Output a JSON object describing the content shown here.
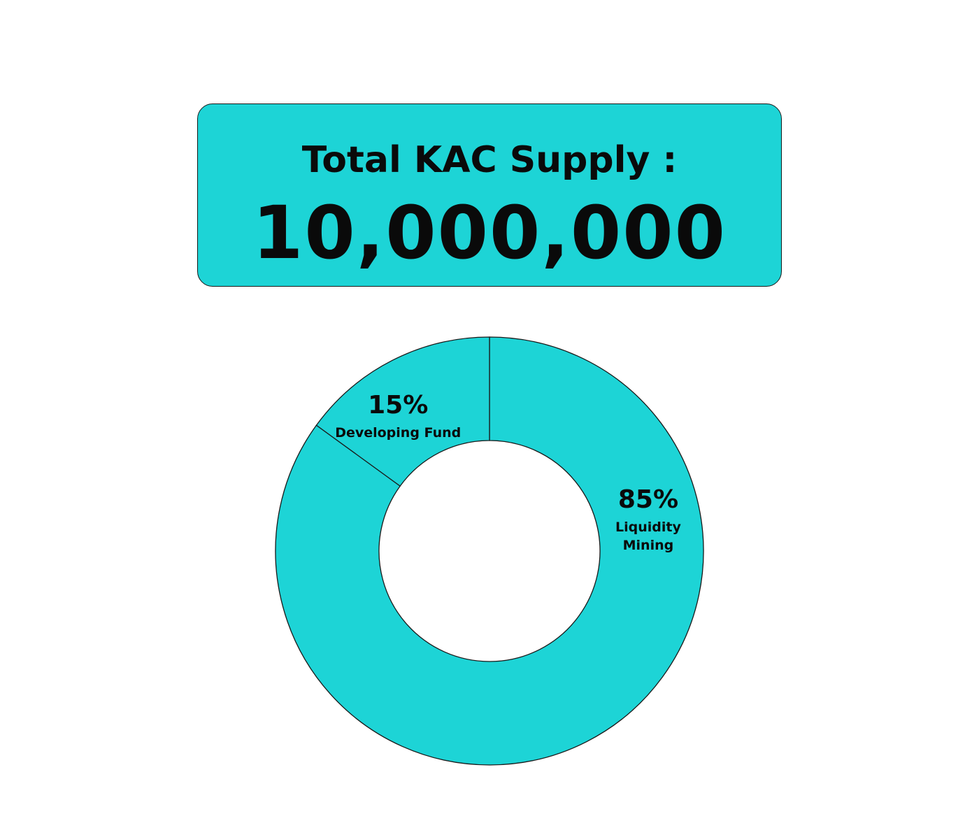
{
  "supply": {
    "label": "Total KAC Supply :",
    "value": "10,000,000"
  },
  "colors": {
    "accent": "#1dd4d6",
    "outline": "#1a1a1a",
    "text": "#0a0a0a",
    "background": "#ffffff"
  },
  "chart_data": {
    "type": "pie",
    "variant": "donut",
    "categories": [
      "Liquidity Mining",
      "Developing Fund"
    ],
    "values": [
      85,
      15
    ],
    "value_labels": [
      "85%",
      "15%"
    ],
    "label_lines": [
      [
        "Liquidity",
        "Mining"
      ],
      [
        "Developing Fund"
      ]
    ],
    "unit": "%",
    "start": "top (12 o'clock), clockwise",
    "legend": "none"
  }
}
